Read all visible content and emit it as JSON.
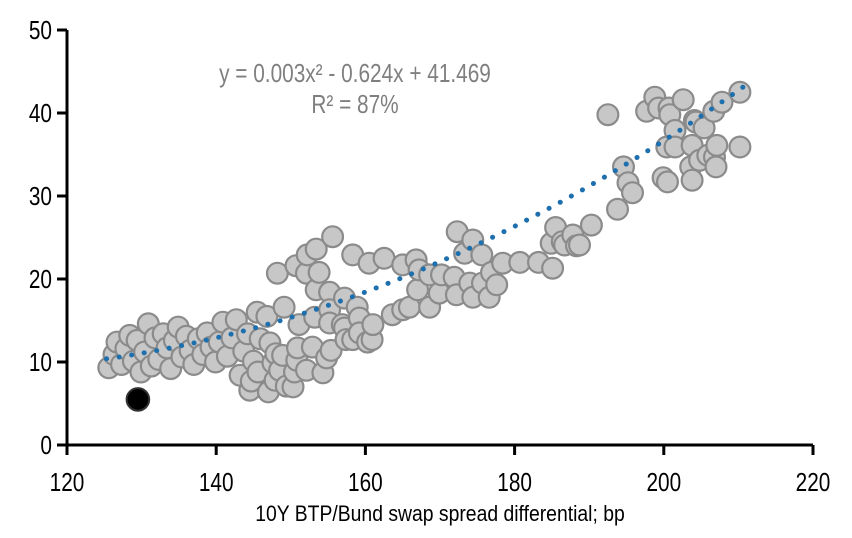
{
  "chart_data": {
    "type": "scatter",
    "title": "",
    "xlabel": "10Y BTP/Bund swap spread differential; bp",
    "ylabel": "",
    "xlim": [
      120,
      220
    ],
    "ylim": [
      0,
      50
    ],
    "x_ticks": [
      "120",
      "140",
      "160",
      "180",
      "200",
      "220"
    ],
    "y_ticks": [
      "0",
      "10",
      "20",
      "30",
      "40",
      "50"
    ],
    "grid": false,
    "legend_position": "none",
    "annotation": {
      "equation": "y = 0.003x² - 0.624x + 41.469",
      "r_squared": "R² = 87%",
      "color": "#7f7f7f"
    },
    "trendline": {
      "kind": "polynomial",
      "degree": 2,
      "coefficients": {
        "a": 0.003,
        "b": -0.624,
        "c": 41.469
      },
      "x_range": [
        125.3,
        210.8
      ],
      "style": "dotted",
      "color": "#1e6fae"
    },
    "series": [
      {
        "name": "observations",
        "marker": {
          "shape": "circle",
          "fill": "#c7c7c7",
          "stroke": "#8b8b8b",
          "radius": 10.4
        },
        "points": [
          [
            125.6,
            9.3
          ],
          [
            126.3,
            10.9
          ],
          [
            126.7,
            12.4
          ],
          [
            127.3,
            9.7
          ],
          [
            127.9,
            11.6
          ],
          [
            128.4,
            13.2
          ],
          [
            128.9,
            10.1
          ],
          [
            129.4,
            12.6
          ],
          [
            129.9,
            8.8
          ],
          [
            130.4,
            11.2
          ],
          [
            130.9,
            14.6
          ],
          [
            131.3,
            9.5
          ],
          [
            131.8,
            12.9
          ],
          [
            132.3,
            10.3
          ],
          [
            132.9,
            13.4
          ],
          [
            133.4,
            11.7
          ],
          [
            133.9,
            9.2
          ],
          [
            134.4,
            12.6
          ],
          [
            134.9,
            14.2
          ],
          [
            135.4,
            10.6
          ],
          [
            136.0,
            13.1
          ],
          [
            136.5,
            11.4
          ],
          [
            137.0,
            9.7
          ],
          [
            137.6,
            12.8
          ],
          [
            138.2,
            10.9
          ],
          [
            138.8,
            13.5
          ],
          [
            139.3,
            11.8
          ],
          [
            139.9,
            10.0
          ],
          [
            140.4,
            12.4
          ],
          [
            140.9,
            14.8
          ],
          [
            141.5,
            10.7
          ],
          [
            142.1,
            12.9
          ],
          [
            142.7,
            15.1
          ],
          [
            143.2,
            8.4
          ],
          [
            143.7,
            11.3
          ],
          [
            144.2,
            13.4
          ],
          [
            144.5,
            6.6
          ],
          [
            144.7,
            7.7
          ],
          [
            145.0,
            10.1
          ],
          [
            145.5,
            16.0
          ],
          [
            145.6,
            8.8
          ],
          [
            145.9,
            12.8
          ],
          [
            146.8,
            15.5
          ],
          [
            147.0,
            6.4
          ],
          [
            147.2,
            12.3
          ],
          [
            147.6,
            9.9
          ],
          [
            147.9,
            7.8
          ],
          [
            148.0,
            11.0
          ],
          [
            148.5,
            9.0
          ],
          [
            148.2,
            20.7
          ],
          [
            148.9,
            10.8
          ],
          [
            149.1,
            16.6
          ],
          [
            149.4,
            7.1
          ],
          [
            150.3,
            7.0
          ],
          [
            150.5,
            8.8
          ],
          [
            150.7,
            21.6
          ],
          [
            150.8,
            10.2
          ],
          [
            150.9,
            11.7
          ],
          [
            151.1,
            14.5
          ],
          [
            152.1,
            20.7
          ],
          [
            152.1,
            9.0
          ],
          [
            152.2,
            22.9
          ],
          [
            152.9,
            11.8
          ],
          [
            153.2,
            15.4
          ],
          [
            153.4,
            23.6
          ],
          [
            153.4,
            18.7
          ],
          [
            153.8,
            20.8
          ],
          [
            154.3,
            8.7
          ],
          [
            154.8,
            10.5
          ],
          [
            155.2,
            18.4
          ],
          [
            155.2,
            16.3
          ],
          [
            155.2,
            14.7
          ],
          [
            155.4,
            11.4
          ],
          [
            155.6,
            25.1
          ],
          [
            156.9,
            14.5
          ],
          [
            157.2,
            17.7
          ],
          [
            157.2,
            14.1
          ],
          [
            157.4,
            12.7
          ],
          [
            158.3,
            22.9
          ],
          [
            158.3,
            12.7
          ],
          [
            158.9,
            16.6
          ],
          [
            159.2,
            15.3
          ],
          [
            159.2,
            13.5
          ],
          [
            160.3,
            12.4
          ],
          [
            160.5,
            21.9
          ],
          [
            160.9,
            12.7
          ],
          [
            161.0,
            14.5
          ],
          [
            162.5,
            22.5
          ],
          [
            163.6,
            15.7
          ],
          [
            165.0,
            16.3
          ],
          [
            165.0,
            21.7
          ],
          [
            165.9,
            16.6
          ],
          [
            166.8,
            22.3
          ],
          [
            167.0,
            18.7
          ],
          [
            167.2,
            21.1
          ],
          [
            168.6,
            20.5
          ],
          [
            168.6,
            16.6
          ],
          [
            169.9,
            18.3
          ],
          [
            170.2,
            20.5
          ],
          [
            171.9,
            20.2
          ],
          [
            172.2,
            18.1
          ],
          [
            172.3,
            25.7
          ],
          [
            173.3,
            23.1
          ],
          [
            174.0,
            19.5
          ],
          [
            174.4,
            24.7
          ],
          [
            174.4,
            17.8
          ],
          [
            175.6,
            22.9
          ],
          [
            175.7,
            19.5
          ],
          [
            176.6,
            17.8
          ],
          [
            176.9,
            20.8
          ],
          [
            177.6,
            19.3
          ],
          [
            178.4,
            21.9
          ],
          [
            180.7,
            22.0
          ],
          [
            183.2,
            22.0
          ],
          [
            184.9,
            24.3
          ],
          [
            185.1,
            21.3
          ],
          [
            185.5,
            26.2
          ],
          [
            186.4,
            24.5
          ],
          [
            186.7,
            24.1
          ],
          [
            187.8,
            25.3
          ],
          [
            188.3,
            24.0
          ],
          [
            188.7,
            24.1
          ],
          [
            190.3,
            26.5
          ],
          [
            192.5,
            39.8
          ],
          [
            193.8,
            28.4
          ],
          [
            194.6,
            33.5
          ],
          [
            195.2,
            31.6
          ],
          [
            195.8,
            30.4
          ],
          [
            197.7,
            40.2
          ],
          [
            198.8,
            41.9
          ],
          [
            199.3,
            40.6
          ],
          [
            199.9,
            32.2
          ],
          [
            200.4,
            35.9
          ],
          [
            200.5,
            31.7
          ],
          [
            200.7,
            40.6
          ],
          [
            200.8,
            39.8
          ],
          [
            201.5,
            37.9
          ],
          [
            201.5,
            35.9
          ],
          [
            202.6,
            41.6
          ],
          [
            203.6,
            33.5
          ],
          [
            203.8,
            36.1
          ],
          [
            203.8,
            31.9
          ],
          [
            204.1,
            39.1
          ],
          [
            204.3,
            38.9
          ],
          [
            204.8,
            34.3
          ],
          [
            205.4,
            38.2
          ],
          [
            205.9,
            34.9
          ],
          [
            206.7,
            40.2
          ],
          [
            206.8,
            34.7
          ],
          [
            207.0,
            33.5
          ],
          [
            207.1,
            36.1
          ],
          [
            207.8,
            41.3
          ],
          [
            210.2,
            42.5
          ],
          [
            210.2,
            35.9
          ]
        ]
      },
      {
        "name": "highlighted observation",
        "marker": {
          "shape": "circle",
          "fill": "#000000",
          "stroke": "#333333",
          "radius": 11.3
        },
        "points": [
          [
            129.5,
            5.5
          ]
        ]
      }
    ],
    "axis_color": "#000000"
  }
}
